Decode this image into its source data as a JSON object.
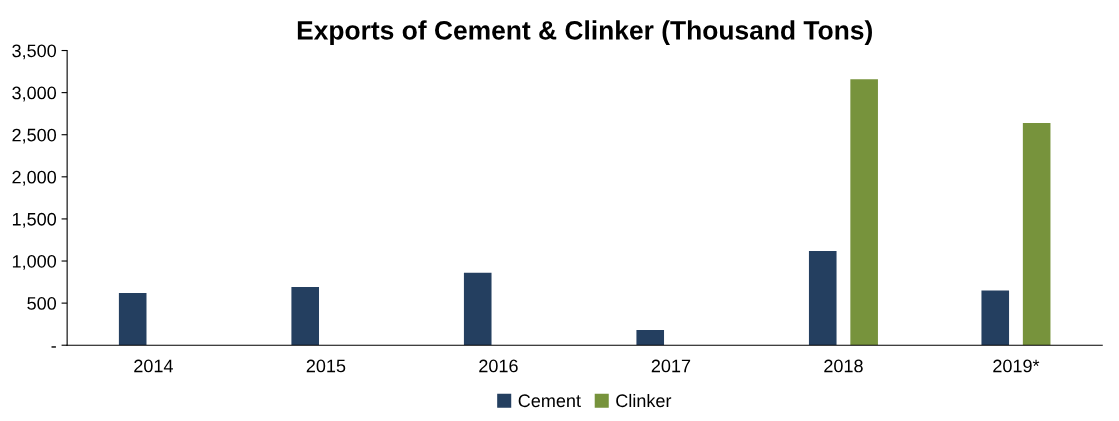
{
  "chart_data": {
    "type": "bar",
    "title": "Exports of Cement & Clinker (Thousand Tons)",
    "categories": [
      "2014",
      "2015",
      "2016",
      "2017",
      "2018",
      "2019*"
    ],
    "series": [
      {
        "name": "Cement",
        "color": "#243f60",
        "values": [
          620,
          690,
          860,
          180,
          1120,
          650
        ]
      },
      {
        "name": "Clinker",
        "color": "#77933c",
        "values": [
          0,
          0,
          0,
          0,
          3160,
          2640
        ]
      }
    ],
    "ylim": [
      0,
      3500
    ],
    "yticks": [
      {
        "value": 0,
        "label": "-"
      },
      500,
      {
        "value": 1000,
        "label": "1,000"
      },
      {
        "value": 1500,
        "label": "1,500"
      },
      {
        "value": 2000,
        "label": "2,000"
      },
      {
        "value": 2500,
        "label": "2,500"
      },
      {
        "value": 3000,
        "label": "3,000"
      },
      {
        "value": 3500,
        "label": "3,500"
      }
    ],
    "grid": false,
    "legend": "bottom"
  }
}
